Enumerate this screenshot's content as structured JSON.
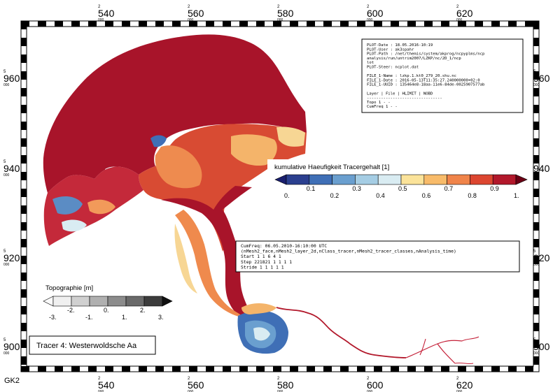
{
  "grid_label": "GK2",
  "x_ticks": [
    {
      "km": "540",
      "pre": "2",
      "post": "000"
    },
    {
      "km": "560",
      "pre": "2",
      "post": "000"
    },
    {
      "km": "580",
      "pre": "2",
      "post": "000"
    },
    {
      "km": "600",
      "pre": "2",
      "post": "000"
    },
    {
      "km": "620",
      "pre": "2",
      "post": "000"
    }
  ],
  "y_ticks": [
    {
      "km": "960",
      "pre": "5",
      "post": "000"
    },
    {
      "km": "940",
      "pre": "5",
      "post": "000"
    },
    {
      "km": "920",
      "pre": "5",
      "post": "000"
    },
    {
      "km": "900",
      "pre": "5",
      "post": "000"
    }
  ],
  "plot_info": {
    "lines": [
      "PLOT-Date : 18.05.2016-10:19",
      "PLOT-User : ak3spahr",
      "PLOT-Path : /net/themis/system/akprog/ncpyplms/ncp",
      "            analysis/run/untrim2007/LZKP/nc/2D_1/ncp",
      "            lot",
      "PLOT-Steer: ncplot.dat",
      "",
      "FILE_1-Name : lzkp.1.kt0_279_20.shu.nc",
      "FILE_1-Date : 2016-05-13T11:35:27.240000000+02:0",
      "FILE_1-UUID : 135464e8-18aa-11e6-84de-0025907577ab",
      "",
      "Layer | File | HLIMIT | NOBD",
      "--------------------------------",
      "Topo     1       -       -",
      "CumFreq  1       -       -"
    ]
  },
  "cumfreq_info": {
    "lines": [
      "CumFreq: 06.05.2010-16:10:00 UTC",
      "(nMesh2_face,nMesh2_layer_2d,nClass_tracer,nMesh2_tracer_classes,nAnalysis_time)",
      "Start        1        1        6        4        1",
      "Step    221821        1        1        1        1",
      "Stride       1        1        1        1        1"
    ]
  },
  "tracer_legend": {
    "title": "kumulative Haeufigkeit Tracergehalt [1]",
    "labels_upper": [
      "0.1",
      "0.3",
      "0.5",
      "0.7",
      "0.9"
    ],
    "labels_lower": [
      "0.",
      "0.2",
      "0.4",
      "0.6",
      "0.8",
      "1."
    ],
    "colors": [
      "#2b3f8f",
      "#3f6fb6",
      "#6a9fcf",
      "#a5cde4",
      "#d9ecf2",
      "#fbe39a",
      "#f8bb6a",
      "#f0844a",
      "#dc4630",
      "#b2182b"
    ],
    "low_color": "#1a1f6e",
    "high_color": "#6b0015"
  },
  "topo_legend": {
    "title": "Topographie [m]",
    "labels_upper": [
      "-2.",
      "0.",
      "2."
    ],
    "labels_lower": [
      "-3.",
      "-1.",
      "1.",
      "3."
    ],
    "colors": [
      "#f0f0f0",
      "#d0d0d0",
      "#b0b0b0",
      "#8c8c8c",
      "#6a6a6a",
      "#3c3c3c"
    ],
    "low_color": "#fafafa",
    "high_color": "#111111"
  },
  "tracer_label": "Tracer 4: Westerwoldsche Aa"
}
